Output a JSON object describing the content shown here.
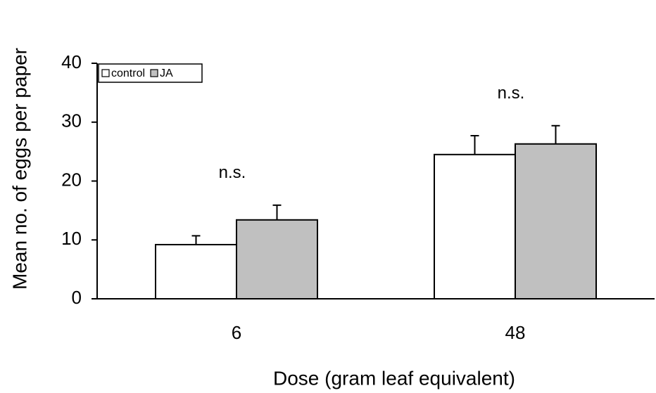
{
  "chart_data": {
    "type": "bar",
    "xlabel": "Dose (gram leaf equivalent)",
    "ylabel": "Mean no. of eggs per paper",
    "categories": [
      "6",
      "48"
    ],
    "series": [
      {
        "name": "control",
        "color": "#ffffff",
        "values": [
          9.2,
          24.5
        ],
        "errors": [
          1.5,
          3.2
        ]
      },
      {
        "name": "JA",
        "color": "#c0c0c0",
        "values": [
          13.4,
          26.3
        ],
        "errors": [
          2.5,
          3.1
        ]
      }
    ],
    "annotations": [
      "n.s.",
      "n.s."
    ],
    "ylim": [
      0,
      40
    ],
    "yticks": [
      0,
      10,
      20,
      30,
      40
    ],
    "legend": "upper left"
  }
}
